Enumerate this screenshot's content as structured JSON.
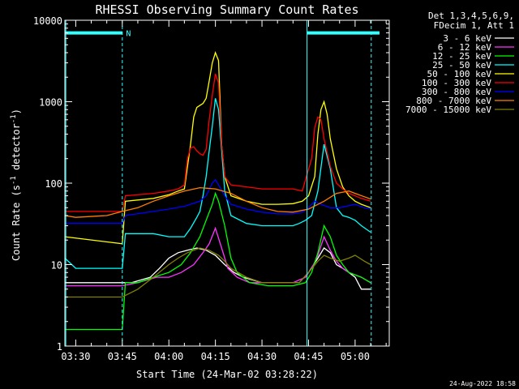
{
  "chart_data": {
    "type": "line",
    "title": "RHESSI Observing Summary Count Rates",
    "xlabel": "Start Time (24-Mar-02 03:28:22)",
    "ylabel_main": "Count Rate (s",
    "ylabel_sup1": "-1",
    "ylabel_mid": " detector",
    "ylabel_sup2": "-1",
    "ylabel_end": ")",
    "y_scale": "log",
    "ylim": [
      1,
      10000
    ],
    "xlim_minutes": [
      -3.5,
      101
    ],
    "x_tick_labels": [
      "03:30",
      "03:45",
      "04:00",
      "04:15",
      "04:30",
      "04:45",
      "05:00"
    ],
    "x_tick_minutes": [
      0,
      15,
      30,
      45,
      60,
      75,
      90
    ],
    "y_tick_labels": [
      "1",
      "10",
      "100",
      "1000",
      "10000"
    ],
    "y_tick_values": [
      1,
      10,
      100,
      1000,
      10000
    ],
    "legend_position": "right of plot",
    "legend_header": [
      "Det 1,3,4,5,6,9,",
      "FDecim 1, Att 1"
    ],
    "annotation_marker": "N",
    "bar_value": 7000,
    "footer": "24-Aug-2022 18:58",
    "colors": {
      "background": "#000000",
      "axes": "#ffffff",
      "bar": "#33ffff",
      "dashed": "#33ffff"
    },
    "series": [
      {
        "name": "3 - 6 keV",
        "color": "#ffffff",
        "points": [
          [
            -3.5,
            6
          ],
          [
            15,
            6
          ],
          [
            18,
            6
          ],
          [
            24,
            7
          ],
          [
            27,
            9
          ],
          [
            30,
            12
          ],
          [
            33,
            14
          ],
          [
            36,
            15
          ],
          [
            39,
            16
          ],
          [
            42,
            15
          ],
          [
            45,
            13
          ],
          [
            48,
            10
          ],
          [
            51,
            8
          ],
          [
            54,
            7
          ],
          [
            60,
            6
          ],
          [
            66,
            6
          ],
          [
            72,
            6
          ],
          [
            75,
            8
          ],
          [
            78,
            12
          ],
          [
            80,
            16
          ],
          [
            82,
            14
          ],
          [
            84,
            10
          ],
          [
            86,
            9
          ],
          [
            88,
            8
          ],
          [
            90,
            7
          ],
          [
            92,
            5
          ],
          [
            95,
            5
          ]
        ]
      },
      {
        "name": "6 - 12 keV",
        "color": "#ff33ff",
        "points": [
          [
            -3.5,
            5.5
          ],
          [
            15,
            5.5
          ],
          [
            20,
            6
          ],
          [
            26,
            7
          ],
          [
            30,
            7
          ],
          [
            34,
            8
          ],
          [
            38,
            10
          ],
          [
            41,
            14
          ],
          [
            43,
            18
          ],
          [
            45,
            28
          ],
          [
            47,
            16
          ],
          [
            49,
            9
          ],
          [
            52,
            7
          ],
          [
            56,
            6
          ],
          [
            62,
            6
          ],
          [
            70,
            6
          ],
          [
            74,
            7
          ],
          [
            76,
            9
          ],
          [
            78,
            13
          ],
          [
            80,
            22
          ],
          [
            82,
            15
          ],
          [
            84,
            11
          ],
          [
            86,
            9
          ],
          [
            88,
            8
          ],
          [
            92,
            7
          ],
          [
            95,
            6
          ]
        ]
      },
      {
        "name": "12 - 25 keV",
        "color": "#00ff00",
        "points": [
          [
            -3.5,
            1.6
          ],
          [
            15,
            1.6
          ],
          [
            16,
            6
          ],
          [
            20,
            6
          ],
          [
            25,
            7
          ],
          [
            30,
            8
          ],
          [
            34,
            10
          ],
          [
            37,
            14
          ],
          [
            40,
            22
          ],
          [
            42,
            35
          ],
          [
            44,
            55
          ],
          [
            45,
            75
          ],
          [
            46,
            60
          ],
          [
            48,
            30
          ],
          [
            50,
            12
          ],
          [
            52,
            8
          ],
          [
            56,
            6
          ],
          [
            62,
            5.5
          ],
          [
            70,
            5.5
          ],
          [
            74,
            6
          ],
          [
            76,
            8
          ],
          [
            78,
            14
          ],
          [
            80,
            30
          ],
          [
            82,
            22
          ],
          [
            84,
            13
          ],
          [
            86,
            10
          ],
          [
            88,
            8
          ],
          [
            92,
            7
          ],
          [
            95,
            6
          ]
        ]
      },
      {
        "name": "25 - 50 keV",
        "color": "#00ffff",
        "points": [
          [
            -3.5,
            12
          ],
          [
            0,
            9
          ],
          [
            15,
            9
          ],
          [
            16,
            24
          ],
          [
            25,
            24
          ],
          [
            30,
            22
          ],
          [
            32,
            22
          ],
          [
            35,
            22
          ],
          [
            37,
            28
          ],
          [
            39,
            38
          ],
          [
            40,
            45
          ],
          [
            41,
            70
          ],
          [
            42,
            120
          ],
          [
            43,
            250
          ],
          [
            44,
            500
          ],
          [
            45,
            1100
          ],
          [
            46,
            800
          ],
          [
            48,
            80
          ],
          [
            50,
            40
          ],
          [
            55,
            32
          ],
          [
            60,
            30
          ],
          [
            65,
            30
          ],
          [
            70,
            30
          ],
          [
            72,
            32
          ],
          [
            74,
            35
          ],
          [
            76,
            40
          ],
          [
            78,
            80
          ],
          [
            80,
            300
          ],
          [
            82,
            150
          ],
          [
            84,
            50
          ],
          [
            86,
            40
          ],
          [
            88,
            38
          ],
          [
            90,
            35
          ],
          [
            92,
            30
          ],
          [
            95,
            25
          ]
        ]
      },
      {
        "name": "50 - 100 keV",
        "color": "#ffff00",
        "points": [
          [
            -3.5,
            22
          ],
          [
            15,
            18
          ],
          [
            16,
            60
          ],
          [
            25,
            65
          ],
          [
            30,
            72
          ],
          [
            33,
            80
          ],
          [
            35,
            85
          ],
          [
            37,
            300
          ],
          [
            38,
            650
          ],
          [
            39,
            850
          ],
          [
            40,
            900
          ],
          [
            41,
            950
          ],
          [
            42,
            1100
          ],
          [
            43,
            1800
          ],
          [
            44,
            3000
          ],
          [
            45,
            4000
          ],
          [
            46,
            3200
          ],
          [
            47,
            300
          ],
          [
            48,
            120
          ],
          [
            50,
            70
          ],
          [
            55,
            60
          ],
          [
            60,
            55
          ],
          [
            65,
            55
          ],
          [
            70,
            56
          ],
          [
            73,
            60
          ],
          [
            75,
            70
          ],
          [
            77,
            120
          ],
          [
            78,
            400
          ],
          [
            79,
            800
          ],
          [
            80,
            1000
          ],
          [
            81,
            700
          ],
          [
            82,
            350
          ],
          [
            84,
            150
          ],
          [
            86,
            90
          ],
          [
            88,
            70
          ],
          [
            90,
            60
          ],
          [
            92,
            55
          ],
          [
            95,
            50
          ]
        ]
      },
      {
        "name": "100 - 300 keV",
        "color": "#ff0000",
        "points": [
          [
            -3.5,
            45
          ],
          [
            15,
            45
          ],
          [
            16,
            70
          ],
          [
            25,
            75
          ],
          [
            30,
            80
          ],
          [
            33,
            85
          ],
          [
            35,
            95
          ],
          [
            36,
            200
          ],
          [
            37,
            270
          ],
          [
            38,
            280
          ],
          [
            39,
            250
          ],
          [
            40,
            230
          ],
          [
            41,
            220
          ],
          [
            42,
            260
          ],
          [
            43,
            600
          ],
          [
            44,
            1200
          ],
          [
            45,
            2200
          ],
          [
            46,
            1700
          ],
          [
            47,
            300
          ],
          [
            48,
            120
          ],
          [
            50,
            95
          ],
          [
            55,
            90
          ],
          [
            60,
            85
          ],
          [
            65,
            85
          ],
          [
            70,
            85
          ],
          [
            73,
            80
          ],
          [
            74,
            110
          ],
          [
            76,
            200
          ],
          [
            77,
            480
          ],
          [
            78,
            650
          ],
          [
            79,
            600
          ],
          [
            80,
            350
          ],
          [
            82,
            160
          ],
          [
            84,
            100
          ],
          [
            86,
            85
          ],
          [
            88,
            75
          ],
          [
            90,
            70
          ],
          [
            92,
            65
          ],
          [
            95,
            60
          ]
        ]
      },
      {
        "name": "300 - 800 keV",
        "color": "#0000ff",
        "points": [
          [
            -3.5,
            32
          ],
          [
            15,
            32
          ],
          [
            16,
            40
          ],
          [
            25,
            45
          ],
          [
            30,
            48
          ],
          [
            35,
            52
          ],
          [
            40,
            60
          ],
          [
            42,
            70
          ],
          [
            44,
            100
          ],
          [
            45,
            110
          ],
          [
            46,
            95
          ],
          [
            48,
            70
          ],
          [
            50,
            55
          ],
          [
            55,
            48
          ],
          [
            60,
            44
          ],
          [
            65,
            42
          ],
          [
            70,
            42
          ],
          [
            73,
            44
          ],
          [
            75,
            50
          ],
          [
            77,
            60
          ],
          [
            79,
            55
          ],
          [
            82,
            50
          ],
          [
            85,
            50
          ],
          [
            90,
            55
          ],
          [
            93,
            50
          ],
          [
            95,
            48
          ]
        ]
      },
      {
        "name": "800 - 7000 keV",
        "color": "#ff8000",
        "points": [
          [
            -3.5,
            40
          ],
          [
            0,
            38
          ],
          [
            10,
            40
          ],
          [
            15,
            45
          ],
          [
            20,
            50
          ],
          [
            25,
            60
          ],
          [
            30,
            70
          ],
          [
            35,
            80
          ],
          [
            40,
            88
          ],
          [
            45,
            85
          ],
          [
            50,
            75
          ],
          [
            55,
            60
          ],
          [
            60,
            50
          ],
          [
            65,
            45
          ],
          [
            70,
            44
          ],
          [
            75,
            48
          ],
          [
            80,
            60
          ],
          [
            84,
            75
          ],
          [
            88,
            80
          ],
          [
            90,
            75
          ],
          [
            93,
            68
          ],
          [
            95,
            64
          ]
        ]
      },
      {
        "name": "7000 - 15000 keV",
        "color": "#808000",
        "points": [
          [
            -3.5,
            4
          ],
          [
            15,
            4
          ],
          [
            20,
            5
          ],
          [
            25,
            7
          ],
          [
            30,
            10
          ],
          [
            33,
            12
          ],
          [
            36,
            14
          ],
          [
            40,
            16
          ],
          [
            43,
            15
          ],
          [
            46,
            13
          ],
          [
            48,
            11
          ],
          [
            50,
            9
          ],
          [
            55,
            7
          ],
          [
            60,
            6
          ],
          [
            66,
            6
          ],
          [
            72,
            6
          ],
          [
            75,
            8
          ],
          [
            78,
            11
          ],
          [
            80,
            13
          ],
          [
            82,
            12
          ],
          [
            85,
            11
          ],
          [
            88,
            12
          ],
          [
            90,
            13
          ],
          [
            93,
            11
          ],
          [
            95,
            10
          ]
        ]
      }
    ]
  }
}
